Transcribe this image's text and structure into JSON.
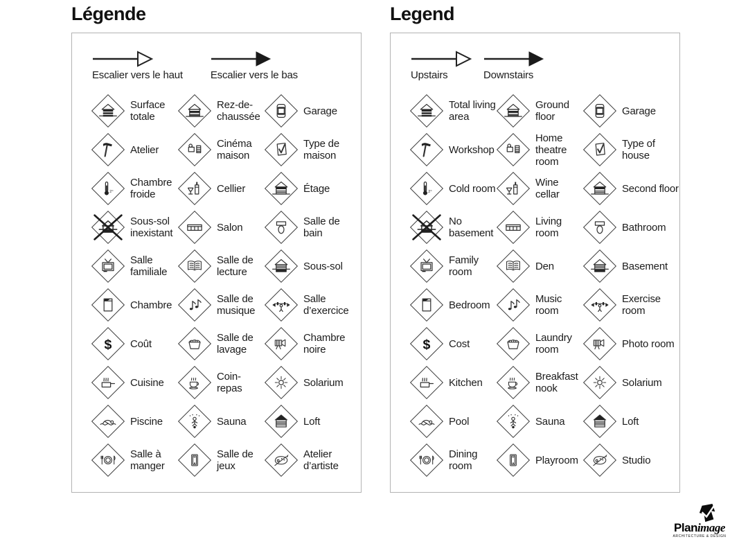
{
  "panels": [
    {
      "title": "Légende",
      "arrows": [
        {
          "label": "Escalier vers le haut",
          "direction": "up"
        },
        {
          "label": "Escalier vers le bas",
          "direction": "down"
        }
      ],
      "items": [
        {
          "icon": "total-living-area",
          "label": "Surface totale"
        },
        {
          "icon": "ground-floor",
          "label": "Rez-de-chaussée"
        },
        {
          "icon": "garage",
          "label": "Garage"
        },
        {
          "icon": "workshop",
          "label": "Atelier"
        },
        {
          "icon": "home-theatre",
          "label": "Cinéma maison"
        },
        {
          "icon": "type-of-house",
          "label": "Type de maison"
        },
        {
          "icon": "cold-room",
          "label": "Chambre froide"
        },
        {
          "icon": "wine-cellar",
          "label": "Cellier"
        },
        {
          "icon": "second-floor",
          "label": "Étage"
        },
        {
          "icon": "no-basement",
          "label": "Sous-sol inexistant"
        },
        {
          "icon": "living-room",
          "label": "Salon"
        },
        {
          "icon": "bathroom",
          "label": "Salle de bain"
        },
        {
          "icon": "family-room",
          "label": "Salle familiale"
        },
        {
          "icon": "den",
          "label": "Salle de lecture"
        },
        {
          "icon": "basement",
          "label": "Sous-sol"
        },
        {
          "icon": "bedroom",
          "label": "Chambre"
        },
        {
          "icon": "music-room",
          "label": "Salle de musique"
        },
        {
          "icon": "exercise-room",
          "label": "Salle d’exercice"
        },
        {
          "icon": "cost",
          "label": "Coût"
        },
        {
          "icon": "laundry-room",
          "label": "Salle de lavage"
        },
        {
          "icon": "photo-room",
          "label": "Chambre noire"
        },
        {
          "icon": "kitchen",
          "label": "Cuisine"
        },
        {
          "icon": "breakfast-nook",
          "label": "Coin-repas"
        },
        {
          "icon": "solarium",
          "label": "Solarium"
        },
        {
          "icon": "pool",
          "label": "Piscine"
        },
        {
          "icon": "sauna",
          "label": "Sauna"
        },
        {
          "icon": "loft",
          "label": "Loft"
        },
        {
          "icon": "dining-room",
          "label": "Salle à manger"
        },
        {
          "icon": "playroom",
          "label": "Salle de jeux"
        },
        {
          "icon": "studio",
          "label": "Atelier d’artiste"
        }
      ]
    },
    {
      "title": "Legend",
      "arrows": [
        {
          "label": "Upstairs",
          "direction": "up"
        },
        {
          "label": "Downstairs",
          "direction": "down"
        }
      ],
      "items": [
        {
          "icon": "total-living-area",
          "label": "Total living area"
        },
        {
          "icon": "ground-floor",
          "label": "Ground floor"
        },
        {
          "icon": "garage",
          "label": "Garage"
        },
        {
          "icon": "workshop",
          "label": "Workshop"
        },
        {
          "icon": "home-theatre",
          "label": "Home theatre room"
        },
        {
          "icon": "type-of-house",
          "label": "Type of house"
        },
        {
          "icon": "cold-room",
          "label": "Cold room"
        },
        {
          "icon": "wine-cellar",
          "label": "Wine cellar"
        },
        {
          "icon": "second-floor",
          "label": "Second floor"
        },
        {
          "icon": "no-basement",
          "label": "No basement"
        },
        {
          "icon": "living-room",
          "label": "Living room"
        },
        {
          "icon": "bathroom",
          "label": "Bathroom"
        },
        {
          "icon": "family-room",
          "label": "Family room"
        },
        {
          "icon": "den",
          "label": "Den"
        },
        {
          "icon": "basement",
          "label": "Basement"
        },
        {
          "icon": "bedroom",
          "label": "Bedroom"
        },
        {
          "icon": "music-room",
          "label": "Music room"
        },
        {
          "icon": "exercise-room",
          "label": "Exercise room"
        },
        {
          "icon": "cost",
          "label": "Cost"
        },
        {
          "icon": "laundry-room",
          "label": "Laundry room"
        },
        {
          "icon": "photo-room",
          "label": "Photo room"
        },
        {
          "icon": "kitchen",
          "label": "Kitchen"
        },
        {
          "icon": "breakfast-nook",
          "label": "Breakfast nook"
        },
        {
          "icon": "solarium",
          "label": "Solarium"
        },
        {
          "icon": "pool",
          "label": "Pool"
        },
        {
          "icon": "sauna",
          "label": "Sauna"
        },
        {
          "icon": "loft",
          "label": "Loft"
        },
        {
          "icon": "dining-room",
          "label": "Dining room"
        },
        {
          "icon": "playroom",
          "label": "Playroom"
        },
        {
          "icon": "studio",
          "label": "Studio"
        }
      ]
    }
  ],
  "logo": {
    "brand_bold": "Plan",
    "brand_italic": "image",
    "tagline": "ARCHITECTURE & DESIGN"
  },
  "colors": {
    "ink": "#1c1c1c",
    "panel_border": "#b3b3b3",
    "background": "#ffffff"
  }
}
